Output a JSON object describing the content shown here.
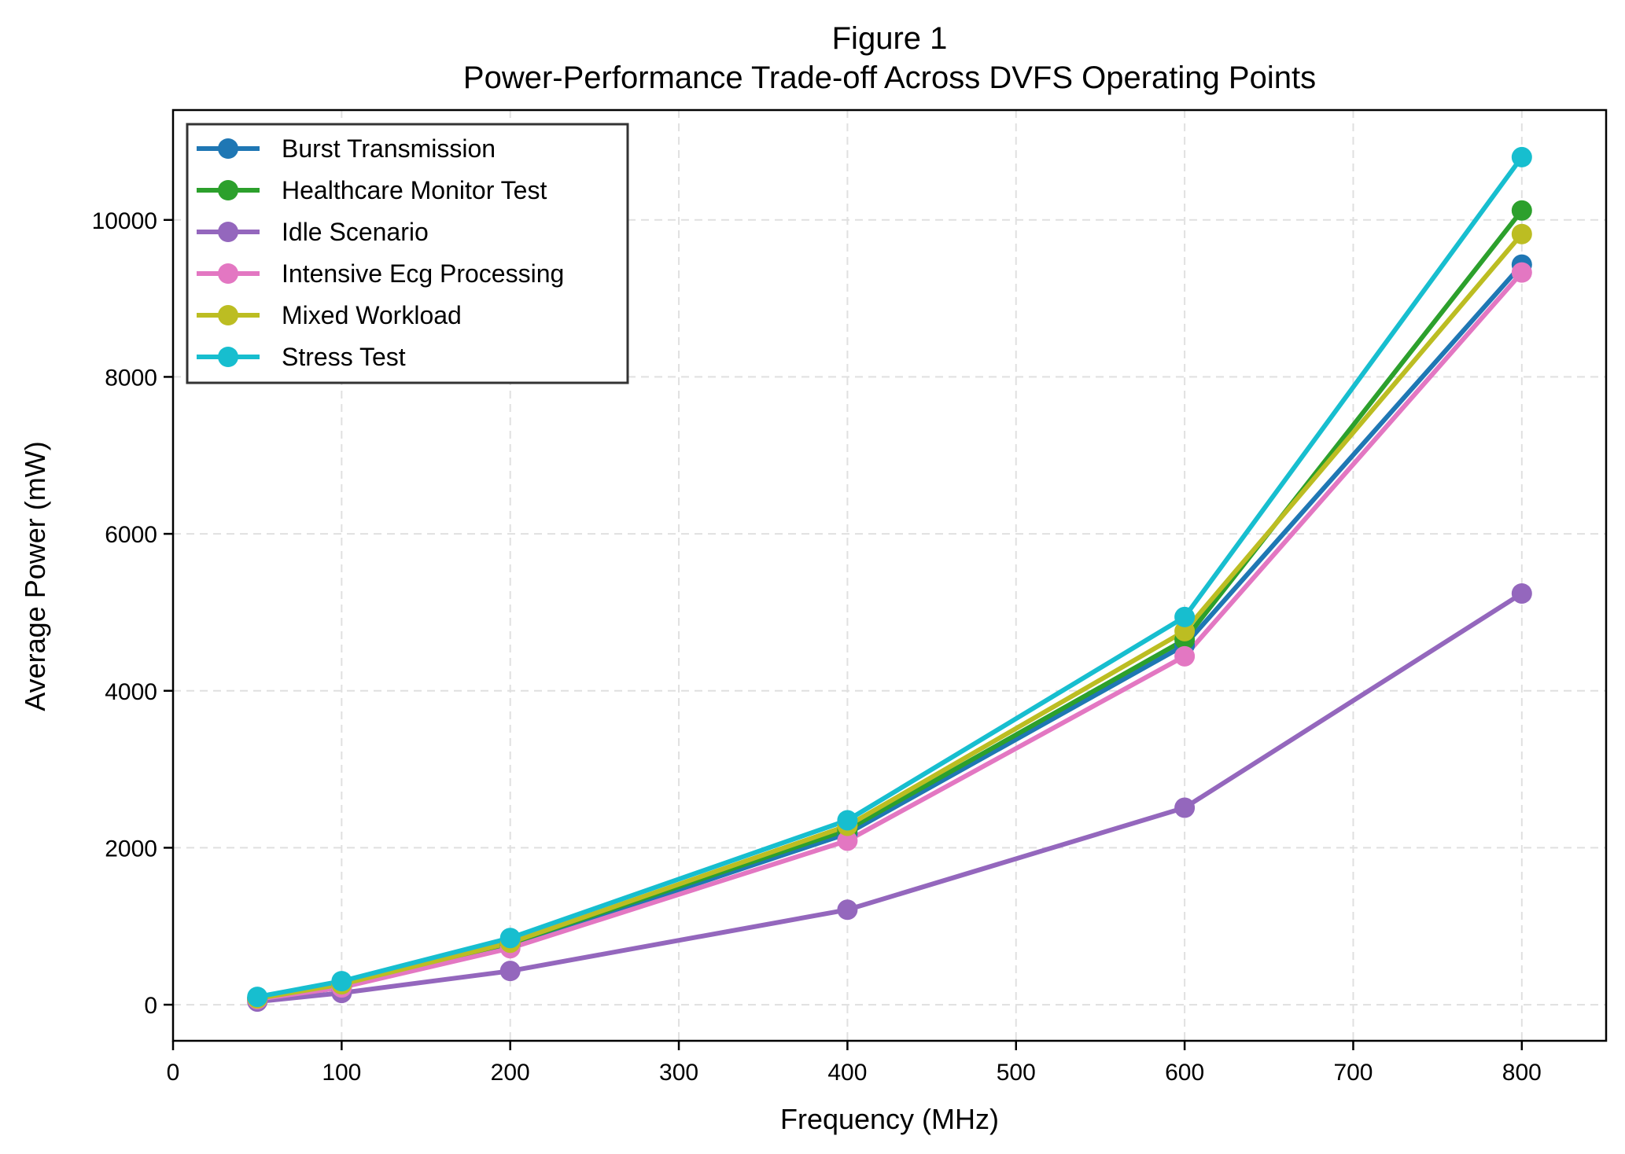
{
  "chart_data": {
    "type": "line",
    "title": "Figure 1",
    "subtitle": "Power-Performance Trade-off Across DVFS Operating Points",
    "xlabel": "Frequency (MHz)",
    "ylabel": "Average Power (mW)",
    "xlim": [
      0,
      850
    ],
    "ylim": [
      -460,
      11400
    ],
    "xticks": [
      0,
      100,
      200,
      300,
      400,
      500,
      600,
      700,
      800
    ],
    "yticks": [
      0,
      2000,
      4000,
      6000,
      8000,
      10000
    ],
    "grid": true,
    "legend_position": "upper-left",
    "x": [
      50,
      100,
      200,
      400,
      600,
      800
    ],
    "series": [
      {
        "name": "Burst Transmission",
        "color": "#1f77b4",
        "values": [
          70,
          220,
          750,
          2180,
          4580,
          9430
        ]
      },
      {
        "name": "Healthcare Monitor Test",
        "color": "#2ca02c",
        "values": [
          75,
          240,
          780,
          2230,
          4650,
          10120
        ]
      },
      {
        "name": "Idle Scenario",
        "color": "#9467bd",
        "values": [
          40,
          150,
          430,
          1210,
          2510,
          5240
        ]
      },
      {
        "name": "Intensive Ecg Processing",
        "color": "#e377c2",
        "values": [
          70,
          220,
          720,
          2090,
          4440,
          9330
        ]
      },
      {
        "name": "Mixed Workload",
        "color": "#bcbd22",
        "values": [
          80,
          260,
          790,
          2280,
          4760,
          9820
        ]
      },
      {
        "name": "Stress Test",
        "color": "#17becf",
        "values": [
          100,
          300,
          850,
          2350,
          4940,
          10800
        ]
      }
    ]
  }
}
